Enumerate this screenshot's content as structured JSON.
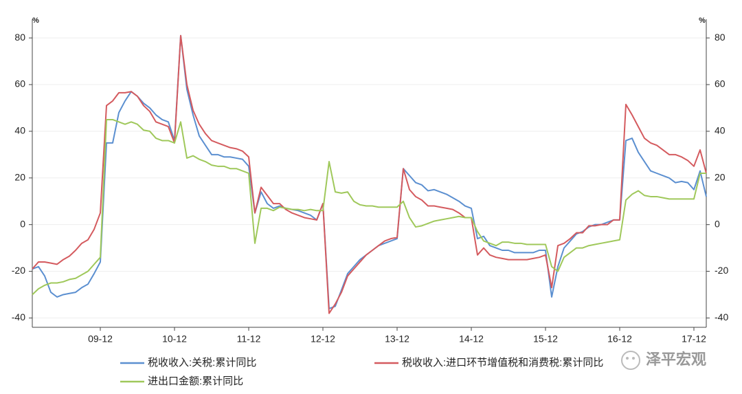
{
  "chart_data": {
    "type": "line",
    "y_unit": "%",
    "y2_unit": "%",
    "watermark": "泽平宏观",
    "categories": [
      null,
      null,
      null,
      null,
      null,
      null,
      null,
      null,
      null,
      null,
      null,
      "09-12",
      null,
      null,
      null,
      null,
      null,
      null,
      null,
      null,
      null,
      null,
      null,
      "10-12",
      null,
      null,
      null,
      null,
      null,
      null,
      null,
      null,
      null,
      null,
      null,
      "11-12",
      null,
      null,
      null,
      null,
      null,
      null,
      null,
      null,
      null,
      null,
      null,
      "12-12",
      null,
      null,
      null,
      null,
      null,
      null,
      null,
      null,
      null,
      null,
      null,
      "13-12",
      null,
      null,
      null,
      null,
      null,
      null,
      null,
      null,
      null,
      null,
      null,
      "14-12",
      null,
      null,
      null,
      null,
      null,
      null,
      null,
      null,
      null,
      null,
      null,
      "15-12",
      null,
      null,
      null,
      null,
      null,
      null,
      null,
      null,
      null,
      null,
      null,
      "16-12",
      null,
      null,
      null,
      null,
      null,
      null,
      null,
      null,
      null,
      null,
      null,
      "17-12",
      null,
      null
    ],
    "series": [
      {
        "name": "税收收入:关税:累计同比",
        "color": "#5b8fd0",
        "values": [
          -19,
          -18,
          -22,
          -29,
          -31,
          -30,
          -29.5,
          -29,
          -27,
          -25.5,
          -21,
          -16,
          35,
          35,
          48,
          53,
          57,
          55,
          52,
          50,
          47,
          45,
          44,
          36,
          81,
          58,
          47,
          38,
          34,
          30,
          30,
          29,
          29,
          28.5,
          28,
          25,
          5,
          14,
          9,
          7,
          8,
          7,
          6.5,
          6,
          5,
          4,
          2,
          9,
          -36,
          -35,
          -28,
          -21,
          -18,
          -15,
          -13,
          -11,
          -9,
          -8,
          -7,
          -6,
          24,
          21,
          18,
          17,
          14.5,
          15,
          14,
          13,
          11.5,
          10,
          8,
          7,
          -6,
          -5,
          -9,
          -10,
          -11,
          -11,
          -12,
          -12,
          -12,
          -12,
          -11,
          -11,
          -31,
          -18,
          -10,
          -7,
          -4,
          -3,
          -1,
          0,
          0,
          1,
          2,
          2,
          36,
          37,
          31,
          27,
          23,
          22,
          21,
          20,
          18,
          18.5,
          18,
          15,
          23,
          12
        ]
      },
      {
        "name": "税收收入:进口环节增值税和消费税:累计同比",
        "color": "#d45a5e",
        "values": [
          -19,
          -16,
          -16,
          -16.5,
          -17,
          -15,
          -13.5,
          -11,
          -8,
          -6.5,
          -2,
          5,
          51,
          53,
          56.5,
          56.5,
          57,
          55,
          51,
          48.5,
          44,
          43,
          42,
          35,
          81,
          60,
          49,
          43,
          39,
          36,
          35,
          34,
          33,
          32.5,
          31.5,
          29,
          5,
          16,
          12.5,
          9,
          9,
          6.5,
          5,
          4,
          3,
          2.5,
          2,
          9,
          -38,
          -34,
          -29,
          -22,
          -19,
          -16,
          -13,
          -11,
          -9,
          -7,
          -6,
          -5.5,
          24,
          15,
          12,
          10.5,
          8,
          8,
          7.5,
          7,
          6.5,
          5,
          3,
          3,
          -13,
          -10,
          -13,
          -14,
          -14.5,
          -15,
          -15,
          -15,
          -15,
          -14.5,
          -14,
          -13,
          -27,
          -9,
          -8,
          -6,
          -3.5,
          -3.5,
          -0.5,
          -0.5,
          0,
          0,
          2,
          2,
          51.5,
          47,
          42,
          37,
          35,
          34,
          32,
          30,
          30,
          29,
          27.5,
          25,
          32,
          22
        ]
      },
      {
        "name": "进出口金额:累计同比",
        "color": "#9fc85a",
        "values": [
          -30,
          -27.5,
          -26,
          -25,
          -25,
          -24.5,
          -23.5,
          -23,
          -21.5,
          -20,
          -17,
          -14,
          45,
          45,
          44,
          43,
          44,
          43,
          40.5,
          40,
          37,
          36,
          36,
          35,
          44,
          28.5,
          29.5,
          28,
          27,
          25.5,
          25,
          25,
          24,
          24,
          23,
          22,
          -8,
          7,
          7,
          6,
          7.5,
          7,
          6.5,
          6.5,
          6,
          6.5,
          6,
          6,
          27,
          14,
          13.5,
          14,
          10,
          8.5,
          8,
          8,
          7.5,
          7.5,
          7.5,
          7.5,
          10,
          3,
          -1,
          -0.5,
          0.5,
          1.5,
          2,
          2.5,
          3,
          3.5,
          3,
          3,
          -3,
          -7,
          -8,
          -9,
          -7.5,
          -7.5,
          -8,
          -8,
          -8.5,
          -8.5,
          -8.5,
          -8.5,
          -18,
          -20,
          -14,
          -12,
          -10,
          -10,
          -9,
          -8.5,
          -8,
          -7.5,
          -7,
          -6.5,
          10.5,
          13,
          14.5,
          12.5,
          12,
          12,
          11.5,
          11,
          11,
          11,
          11,
          11,
          22,
          22
        ]
      }
    ],
    "ylim": [
      -44,
      88
    ],
    "yticks": [
      -40,
      -20,
      0,
      20,
      40,
      60,
      80
    ],
    "y2lim": [
      -44,
      88
    ],
    "y2ticks": [
      -40,
      -20,
      0,
      20,
      40,
      60,
      80
    ],
    "grid": true
  }
}
